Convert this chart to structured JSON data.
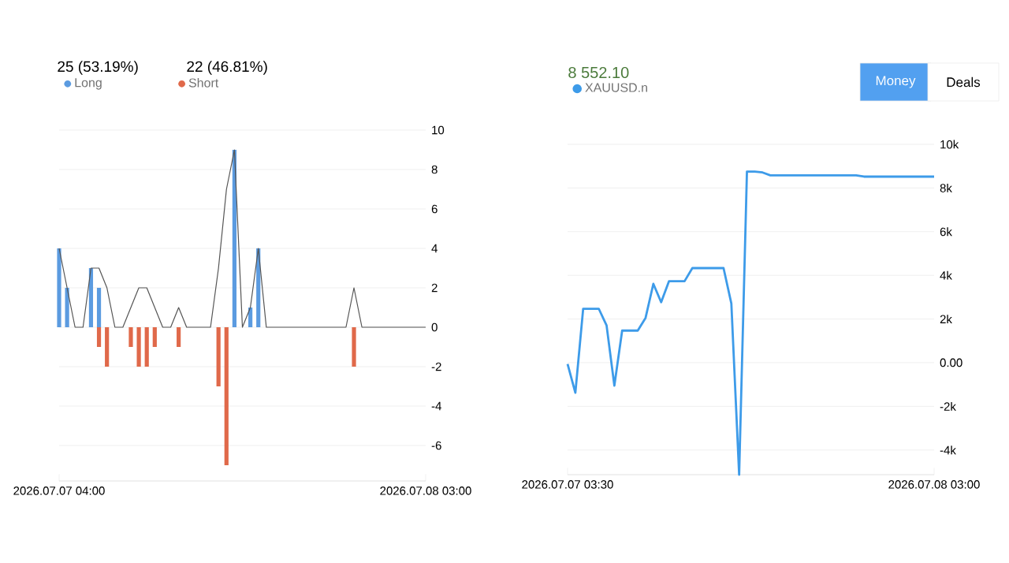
{
  "chart_data": [
    {
      "type": "bar",
      "annotations": [
        "25 (53.19%)",
        "22 (46.81%)"
      ],
      "xlim": [
        "2026-07-07T04:00",
        "2026-07-08T03:00"
      ],
      "xticks": [
        {
          "value": "2026-07-07T04:00",
          "label": "2026.07.07 04:00"
        },
        {
          "value": "2026-07-08T03:00",
          "label": "2026.07.08 03:00"
        }
      ],
      "ylim": [
        -7.8,
        10
      ],
      "yticks": [
        -6,
        -4,
        -2,
        0,
        2,
        4,
        6,
        8,
        10
      ],
      "grid": "y",
      "legend": "top left",
      "series": [
        {
          "name": "Long",
          "color": "#5b9be0",
          "x": [
            "2026-07-07T04:00",
            "2026-07-07T04:30",
            "2026-07-07T06:00",
            "2026-07-07T06:30",
            "2026-07-07T15:00",
            "2026-07-07T16:00",
            "2026-07-07T16:30"
          ],
          "values": [
            4,
            2,
            3,
            2,
            9,
            1,
            4
          ]
        },
        {
          "name": "Short",
          "color": "#e0694a",
          "x": [
            "2026-07-07T06:30",
            "2026-07-07T07:00",
            "2026-07-07T08:30",
            "2026-07-07T09:00",
            "2026-07-07T09:30",
            "2026-07-07T10:00",
            "2026-07-07T11:30",
            "2026-07-07T14:00",
            "2026-07-07T14:30",
            "2026-07-07T22:30"
          ],
          "values": [
            -1,
            -2,
            -1,
            -2,
            -2,
            -1,
            -1,
            -3,
            -7,
            -2
          ]
        },
        {
          "type": "line",
          "color": "#555555",
          "x": [
            "2026-07-07T04:00",
            "2026-07-07T04:30",
            "2026-07-07T05:00",
            "2026-07-07T05:30",
            "2026-07-07T06:00",
            "2026-07-07T06:30",
            "2026-07-07T07:00",
            "2026-07-07T07:30",
            "2026-07-07T08:00",
            "2026-07-07T08:30",
            "2026-07-07T09:00",
            "2026-07-07T09:30",
            "2026-07-07T10:00",
            "2026-07-07T10:30",
            "2026-07-07T11:00",
            "2026-07-07T11:30",
            "2026-07-07T12:00",
            "2026-07-07T12:30",
            "2026-07-07T13:00",
            "2026-07-07T13:30",
            "2026-07-07T14:00",
            "2026-07-07T14:30",
            "2026-07-07T15:00",
            "2026-07-07T15:30",
            "2026-07-07T16:00",
            "2026-07-07T16:30",
            "2026-07-07T17:00",
            "2026-07-07T17:30",
            "2026-07-07T18:00",
            "2026-07-07T18:30",
            "2026-07-07T19:00",
            "2026-07-07T19:30",
            "2026-07-07T20:00",
            "2026-07-07T20:30",
            "2026-07-07T21:00",
            "2026-07-07T21:30",
            "2026-07-07T22:00",
            "2026-07-07T22:30",
            "2026-07-07T23:00",
            "2026-07-07T23:30",
            "2026-07-08T00:00",
            "2026-07-08T00:30",
            "2026-07-08T01:00",
            "2026-07-08T01:30",
            "2026-07-08T02:00",
            "2026-07-08T02:30",
            "2026-07-08T03:00"
          ],
          "values": [
            4,
            2,
            0,
            0,
            3,
            3,
            2,
            0,
            0,
            1,
            2,
            2,
            1,
            0,
            0,
            1,
            0,
            0,
            0,
            0,
            3,
            7,
            9,
            0,
            1,
            4,
            0,
            0,
            0,
            0,
            0,
            0,
            0,
            0,
            0,
            0,
            0,
            2,
            0,
            0,
            0,
            0,
            0,
            0,
            0,
            0,
            0
          ]
        }
      ]
    },
    {
      "type": "line",
      "title": "8 552.10",
      "annotations": [
        "Money",
        "Deals"
      ],
      "xlim": [
        "2026-07-07T03:30",
        "2026-07-08T03:00"
      ],
      "xticks": [
        {
          "value": "2026-07-07T03:30",
          "label": "2026.07.07 03:30"
        },
        {
          "value": "2026-07-08T03:00",
          "label": "2026.07.08 03:00"
        }
      ],
      "ylim": [
        -5130,
        10000
      ],
      "yticks": [
        {
          "value": -4000,
          "label": "-4k"
        },
        {
          "value": -2000,
          "label": "-2k"
        },
        {
          "value": 0,
          "label": "0.00"
        },
        {
          "value": 2000,
          "label": "2k"
        },
        {
          "value": 4000,
          "label": "4k"
        },
        {
          "value": 6000,
          "label": "6k"
        },
        {
          "value": 8000,
          "label": "8k"
        },
        {
          "value": 10000,
          "label": "10k"
        }
      ],
      "grid": "y",
      "legend": "top left",
      "series": [
        {
          "name": "XAUUSD.n",
          "color": "#3d9be9",
          "x": [
            "2026-07-07T03:30",
            "2026-07-07T04:00",
            "2026-07-07T04:30",
            "2026-07-07T05:30",
            "2026-07-07T06:00",
            "2026-07-07T06:30",
            "2026-07-07T07:00",
            "2026-07-07T08:00",
            "2026-07-07T08:30",
            "2026-07-07T09:00",
            "2026-07-07T09:30",
            "2026-07-07T10:00",
            "2026-07-07T11:00",
            "2026-07-07T11:30",
            "2026-07-07T13:30",
            "2026-07-07T14:00",
            "2026-07-07T14:30",
            "2026-07-07T15:00",
            "2026-07-07T15:30",
            "2026-07-07T16:00",
            "2026-07-07T16:30",
            "2026-07-07T22:00",
            "2026-07-07T22:30",
            "2026-07-08T03:00"
          ],
          "values": [
            -60,
            -1380,
            2470,
            2470,
            1710,
            -1050,
            1470,
            1470,
            2050,
            3610,
            2770,
            3730,
            3730,
            4330,
            4330,
            2710,
            -5130,
            8750,
            8750,
            8710,
            8580,
            8580,
            8520,
            8520
          ]
        }
      ]
    }
  ]
}
